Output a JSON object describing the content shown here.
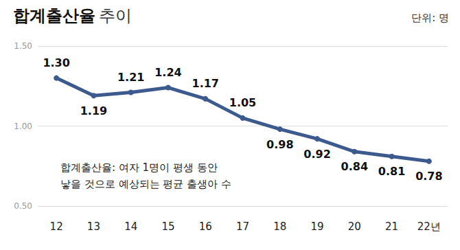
{
  "chart_data": {
    "type": "line",
    "title": "합계출산율 추이",
    "subtitle": "단위: 명",
    "annotation": [
      "합계출산율: 여자 1명이 평생 동안",
      "낳을 것으로 예상되는 평균 출생아 수"
    ],
    "categories": [
      "12",
      "13",
      "14",
      "15",
      "16",
      "17",
      "18",
      "19",
      "20",
      "21",
      "22년"
    ],
    "values": [
      1.3,
      1.19,
      1.21,
      1.24,
      1.17,
      1.05,
      0.98,
      0.92,
      0.84,
      0.81,
      0.78
    ],
    "value_labels": [
      "1.30",
      "1.19",
      "1.21",
      "1.24",
      "1.17",
      "1.05",
      "0.98",
      "0.92",
      "0.84",
      "0.81",
      "0.78"
    ],
    "color": "#3d5a8f",
    "ylim": [
      0.5,
      1.5
    ],
    "yticks": [
      {
        "value": 0.5,
        "label": "0.50"
      },
      {
        "value": 1.0,
        "label": "1.00"
      },
      {
        "value": 1.5,
        "label": "1.50"
      }
    ],
    "grid": true,
    "data_labels": true,
    "marker": "circle"
  }
}
